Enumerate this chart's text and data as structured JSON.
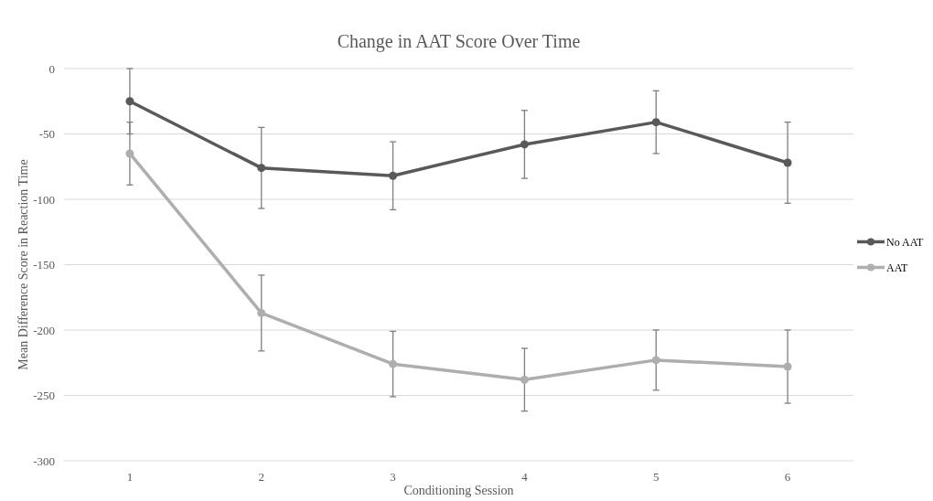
{
  "chart_data": {
    "type": "line",
    "title": "Change in AAT Score Over Time",
    "xlabel": "Conditioning Session",
    "ylabel": "Mean Difference Score in Reaction Time",
    "categories": [
      "1",
      "2",
      "3",
      "4",
      "5",
      "6"
    ],
    "series": [
      {
        "name": "No AAT",
        "color": "#595959",
        "values": [
          -25,
          -76,
          -82,
          -58,
          -41,
          -72
        ],
        "errors": [
          25,
          31,
          26,
          26,
          24,
          31
        ]
      },
      {
        "name": "AAT",
        "color": "#aeaeae",
        "values": [
          -65,
          -187,
          -226,
          -238,
          -223,
          -228
        ],
        "errors": [
          24,
          29,
          25,
          24,
          23,
          28
        ]
      }
    ],
    "ylim": [
      -300,
      0
    ],
    "yticks": [
      0,
      -50,
      -100,
      -150,
      -200,
      -250,
      -300
    ],
    "grid": "y",
    "legend": "right",
    "marker": "circle",
    "line_style": "solid"
  }
}
